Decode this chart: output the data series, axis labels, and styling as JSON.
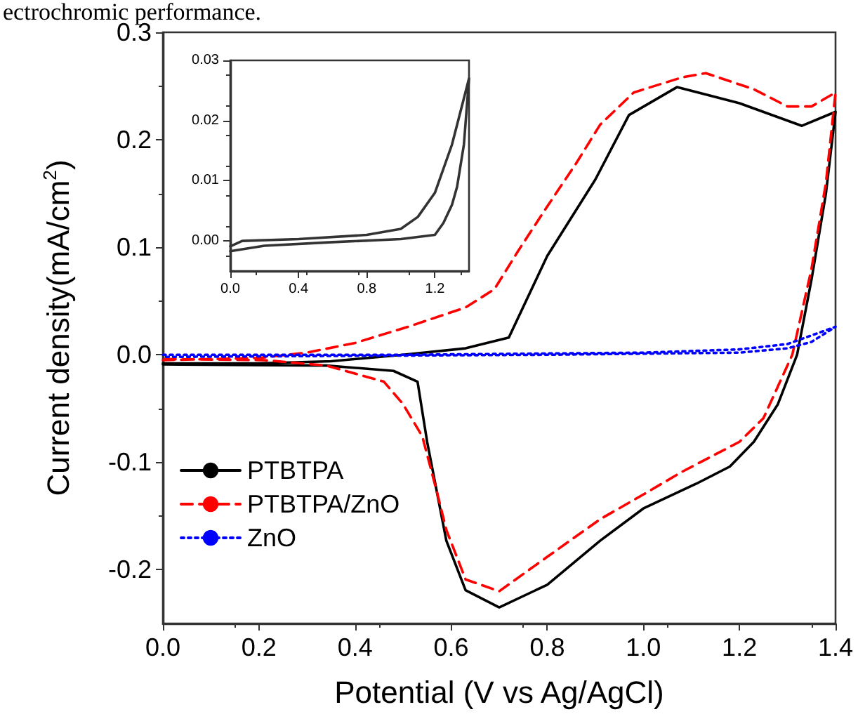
{
  "chart_data": [
    {
      "type": "line",
      "xlabel": "Potential (V vs Ag/AgCl)",
      "ylabel": "Current density(mA/cm$^{2}$)",
      "annotations": [
        "ectrochromic performance."
      ],
      "xlim": [
        0,
        1.4
      ],
      "xticks": [
        {
          "value": 0,
          "label": "0.0"
        },
        {
          "value": 0.2,
          "label": "0.2"
        },
        {
          "value": 0.4,
          "label": "0.4"
        },
        {
          "value": 0.6,
          "label": "0.6"
        },
        {
          "value": 0.8,
          "label": "0.8"
        },
        {
          "value": 1,
          "label": "1.0"
        },
        {
          "value": 1.2,
          "label": "1.2"
        },
        {
          "value": 1.4,
          "label": "1.4"
        }
      ],
      "ylim": [
        -0.25,
        0.3
      ],
      "yticks": [
        {
          "value": -0.2,
          "label": "-0.2"
        },
        {
          "value": -0.1,
          "label": "-0.1"
        },
        {
          "value": 0,
          "label": "0.0"
        },
        {
          "value": 0.1,
          "label": "0.1"
        },
        {
          "value": 0.2,
          "label": "0.2"
        },
        {
          "value": 0.3,
          "label": "0.3"
        }
      ],
      "grid": false,
      "legend": "bottom left",
      "marker": "none",
      "series": [
        {
          "name": "PTBTPA",
          "color": "#000000",
          "line_style": "solid",
          "x": [
            0,
            0.2,
            0.35,
            0.5,
            0.63,
            0.72,
            0.8,
            0.9,
            0.97,
            1.07,
            1.2,
            1.33,
            1.4,
            1.38,
            1.35,
            1.32,
            1.28,
            1.23,
            1.18,
            1.11,
            1.0,
            0.91,
            0.8,
            0.7,
            0.63,
            0.59,
            0.57,
            0.55,
            0.53,
            0.48,
            0.34,
            0
          ],
          "values": [
            -0.008,
            -0.008,
            -0.006,
            0.0,
            0.006,
            0.016,
            0.092,
            0.163,
            0.223,
            0.249,
            0.234,
            0.213,
            0.226,
            0.15,
            0.07,
            0.0,
            -0.046,
            -0.081,
            -0.104,
            -0.12,
            -0.143,
            -0.173,
            -0.214,
            -0.235,
            -0.219,
            -0.173,
            -0.127,
            -0.081,
            -0.025,
            -0.015,
            -0.01,
            -0.009
          ]
        },
        {
          "name": "PTBTPA/ZnO",
          "color": "#ff0000",
          "line_style": "dashed",
          "x": [
            0,
            0.2,
            0.3,
            0.4,
            0.51,
            0.63,
            0.69,
            0.74,
            0.8,
            0.86,
            0.91,
            0.98,
            1.08,
            1.13,
            1.23,
            1.3,
            1.35,
            1.4,
            1.38,
            1.35,
            1.31,
            1.25,
            1.2,
            1.08,
            1.0,
            0.91,
            0.8,
            0.7,
            0.63,
            0.59,
            0.57,
            0.54,
            0.5,
            0.46,
            0.34,
            0.21,
            0
          ],
          "values": [
            -0.005,
            -0.003,
            0.002,
            0.011,
            0.026,
            0.044,
            0.061,
            0.097,
            0.138,
            0.178,
            0.214,
            0.244,
            0.258,
            0.262,
            0.247,
            0.231,
            0.231,
            0.244,
            0.16,
            0.08,
            0.0,
            -0.059,
            -0.081,
            -0.109,
            -0.13,
            -0.153,
            -0.188,
            -0.22,
            -0.209,
            -0.163,
            -0.127,
            -0.076,
            -0.046,
            -0.025,
            -0.01,
            -0.005,
            -0.004
          ]
        },
        {
          "name": "ZnO",
          "color": "#0000ff",
          "line_style": "dotted",
          "x": [
            0,
            0.5,
            1.0,
            1.2,
            1.3,
            1.4,
            1.35,
            1.3,
            1.2,
            0.8,
            0
          ],
          "values": [
            0.0,
            0.0,
            0.002,
            0.005,
            0.01,
            0.026,
            0.012,
            0.006,
            0.002,
            0.0,
            -0.002
          ]
        }
      ]
    },
    {
      "type": "line",
      "xlim": [
        0,
        1.4
      ],
      "xticks": [
        {
          "value": 0,
          "label": "0.0"
        },
        {
          "value": 0.4,
          "label": "0.4"
        },
        {
          "value": 0.8,
          "label": "0.8"
        },
        {
          "value": 1.2,
          "label": "1.2"
        }
      ],
      "ylim": [
        -0.005,
        0.03
      ],
      "yticks": [
        {
          "value": 0,
          "label": "0.00"
        },
        {
          "value": 0.01,
          "label": "0.01"
        },
        {
          "value": 0.02,
          "label": "0.02"
        },
        {
          "value": 0.03,
          "label": "0.03"
        }
      ],
      "grid": false,
      "legend": false,
      "marker": "none",
      "series": [
        {
          "color": "#333333",
          "line_style": "solid",
          "x": [
            0,
            0.07,
            0.4,
            0.8,
            1.0,
            1.1,
            1.2,
            1.3,
            1.4,
            1.37,
            1.33,
            1.3,
            1.25,
            1.2,
            1.0,
            0.6,
            0.2,
            0
          ],
          "values": [
            -0.0009,
            0.0,
            0.0003,
            0.001,
            0.002,
            0.004,
            0.008,
            0.016,
            0.027,
            0.016,
            0.009,
            0.006,
            0.003,
            0.001,
            0.0003,
            -0.0002,
            -0.0008,
            -0.0017
          ]
        }
      ]
    }
  ]
}
